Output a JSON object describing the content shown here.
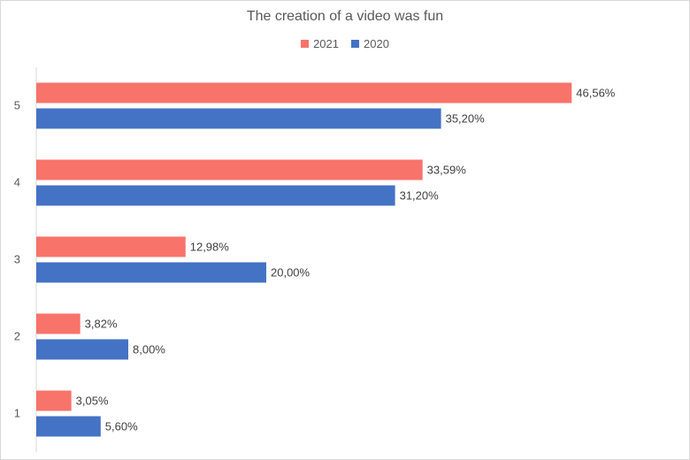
{
  "chart_data": {
    "type": "bar",
    "orientation": "horizontal",
    "title": "The creation of a video was fun",
    "categories": [
      "5",
      "4",
      "3",
      "2",
      "1"
    ],
    "series": [
      {
        "name": "2021",
        "color": "#f8736a",
        "values": [
          46.56,
          33.59,
          12.98,
          3.82,
          3.05
        ],
        "labels": [
          "46,56%",
          "33,59%",
          "12,98%",
          "3,82%",
          "3,05%"
        ]
      },
      {
        "name": "2020",
        "color": "#4472c4",
        "values": [
          35.2,
          31.2,
          20.0,
          8.0,
          5.6
        ],
        "labels": [
          "35,20%",
          "31,20%",
          "20,00%",
          "8,00%",
          "5,60%"
        ]
      }
    ],
    "xlim": [
      0,
      50
    ],
    "grid": false,
    "legend_position": "top"
  }
}
